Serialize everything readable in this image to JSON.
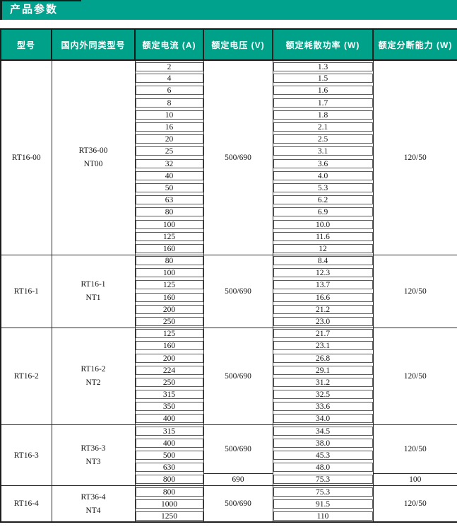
{
  "title": "产品参数",
  "colors": {
    "accent_teal": "#00a28e",
    "accent_dark": "#0c2420",
    "header_text": "#ffffff"
  },
  "table": {
    "headers": [
      "型号",
      "国内外同类型号",
      "额定电流 (A)",
      "额定电压 (V)",
      "额定耗散功率 (W)",
      "额定分断能力 (W)"
    ],
    "groups": [
      {
        "model": "RT16-00",
        "equivalent": [
          "RT36-00",
          "NT00"
        ],
        "voltage": "500/690",
        "breaking": "120/50",
        "rows": [
          [
            "2",
            "1.3"
          ],
          [
            "4",
            "1.5"
          ],
          [
            "6",
            "1.6"
          ],
          [
            "8",
            "1.7"
          ],
          [
            "10",
            "1.8"
          ],
          [
            "16",
            "2.1"
          ],
          [
            "20",
            "2.5"
          ],
          [
            "25",
            "3.1"
          ],
          [
            "32",
            "3.6"
          ],
          [
            "40",
            "4.0"
          ],
          [
            "50",
            "5.3"
          ],
          [
            "63",
            "6.2"
          ],
          [
            "80",
            "6.9"
          ],
          [
            "100",
            "10.0"
          ],
          [
            "125",
            "11.6"
          ],
          [
            "160",
            "12"
          ]
        ]
      },
      {
        "model": "RT16-1",
        "equivalent": [
          "RT16-1",
          "NT1"
        ],
        "voltage": "500/690",
        "breaking": "120/50",
        "rows": [
          [
            "80",
            "8.4"
          ],
          [
            "100",
            "12.3"
          ],
          [
            "125",
            "13.7"
          ],
          [
            "160",
            "16.6"
          ],
          [
            "200",
            "21.2"
          ],
          [
            "250",
            "23.0"
          ]
        ]
      },
      {
        "model": "RT16-2",
        "equivalent": [
          "RT16-2",
          "NT2"
        ],
        "voltage": "500/690",
        "breaking": "120/50",
        "rows": [
          [
            "125",
            "21.7"
          ],
          [
            "160",
            "23.1"
          ],
          [
            "200",
            "26.8"
          ],
          [
            "224",
            "29.1"
          ],
          [
            "250",
            "31.2"
          ],
          [
            "315",
            "32.5"
          ],
          [
            "350",
            "33.6"
          ],
          [
            "400",
            "34.0"
          ]
        ]
      },
      {
        "model": "RT16-3",
        "equivalent": [
          "RT36-3",
          "NT3"
        ],
        "voltage": "500/690",
        "breaking": "120/50",
        "rows": [
          [
            "315",
            "34.5"
          ],
          [
            "400",
            "38.0"
          ],
          [
            "500",
            "45.3"
          ],
          [
            "630",
            "48.0"
          ],
          [
            "800",
            "75.3"
          ]
        ],
        "special_row": {
          "voltage": "690",
          "breaking": "100"
        }
      },
      {
        "model": "RT16-4",
        "equivalent": [
          "RT36-4",
          "NT4"
        ],
        "voltage": "500/690",
        "breaking": "120/50",
        "rows": [
          [
            "800",
            "75.3"
          ],
          [
            "1000",
            "91.5"
          ],
          [
            "1250",
            "110"
          ]
        ]
      }
    ]
  }
}
